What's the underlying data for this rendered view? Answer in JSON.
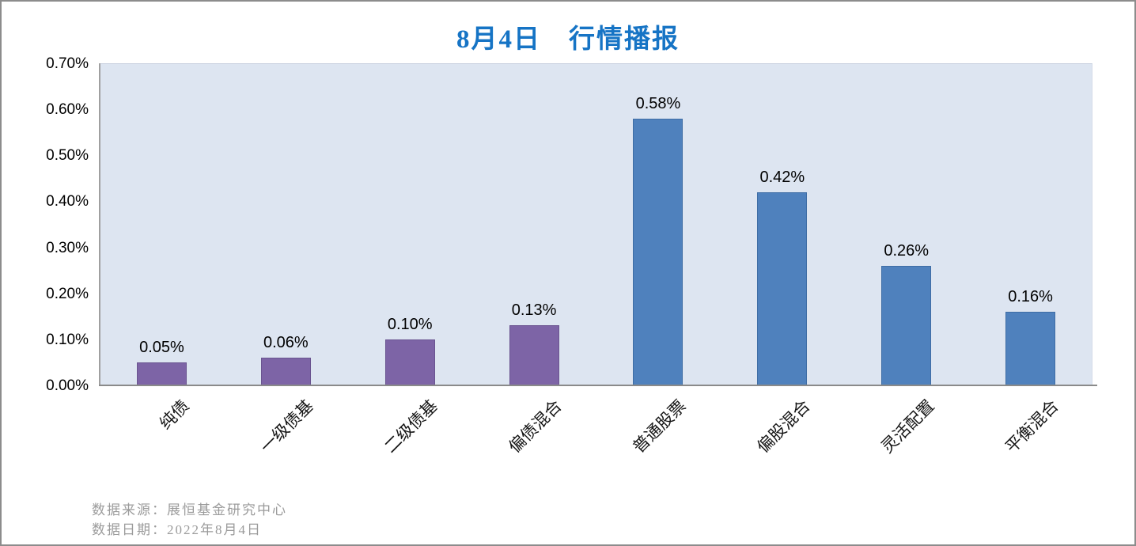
{
  "title": {
    "text": "8月4日　行情播报",
    "color": "#1674C5"
  },
  "chart_data": {
    "type": "bar",
    "title": "8月4日　行情播报",
    "categories": [
      "纯债",
      "一级债基",
      "二级债基",
      "偏债混合",
      "普通股票",
      "偏股混合",
      "灵活配置",
      "平衡混合"
    ],
    "values": [
      0.05,
      0.06,
      0.1,
      0.13,
      0.58,
      0.42,
      0.26,
      0.16
    ],
    "value_labels": [
      "0.05%",
      "0.06%",
      "0.10%",
      "0.13%",
      "0.58%",
      "0.42%",
      "0.26%",
      "0.16%"
    ],
    "bar_colors": [
      "#7D64A6",
      "#7D64A6",
      "#7D64A6",
      "#7D64A6",
      "#4F81BD",
      "#4F81BD",
      "#4F81BD",
      "#4F81BD"
    ],
    "bar_border_colors": [
      "#6A5490",
      "#6A5490",
      "#6A5490",
      "#6A5490",
      "#3E6DA5",
      "#3E6DA5",
      "#3E6DA5",
      "#3E6DA5"
    ],
    "xlabel": "",
    "ylabel": "",
    "ylim": [
      0,
      0.7
    ],
    "yticks": [
      0,
      0.1,
      0.2,
      0.3,
      0.4,
      0.5,
      0.6,
      0.7
    ],
    "ytick_labels": [
      "0.00%",
      "0.10%",
      "0.20%",
      "0.30%",
      "0.40%",
      "0.50%",
      "0.60%",
      "0.70%"
    ],
    "grid": false,
    "legend": "none",
    "plot_background": "#DDE5F1",
    "title_color": "#1674C5"
  },
  "footer": {
    "source_line": "数据来源：展恒基金研究中心",
    "date_line": "数据日期：2022年8月4日"
  }
}
